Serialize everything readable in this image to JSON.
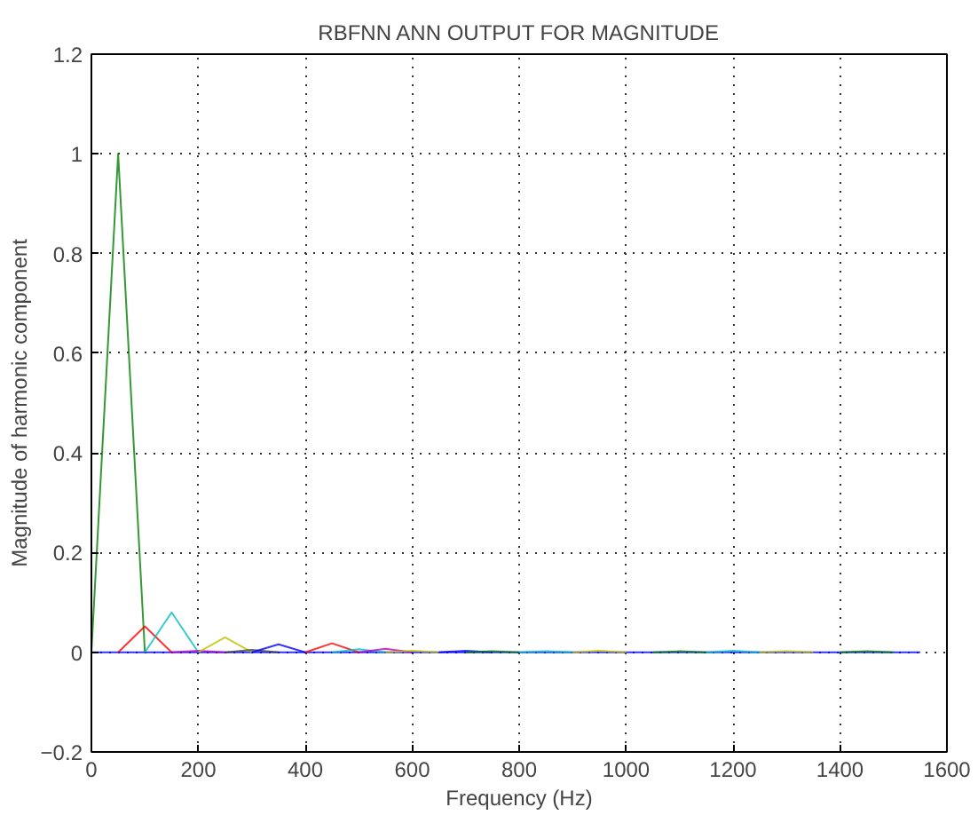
{
  "chart_data": {
    "type": "line",
    "title": "RBFNN ANN OUTPUT FOR MAGNITUDE",
    "xlabel": "Frequency (Hz)",
    "ylabel": "Magnitude of harmonic component",
    "xlim": [
      0,
      1600
    ],
    "ylim": [
      -0.2,
      1.2
    ],
    "xticks": [
      0,
      200,
      400,
      600,
      800,
      1000,
      1200,
      1400,
      1600
    ],
    "yticks": [
      -0.2,
      0,
      0.2,
      0.4,
      0.6,
      0.8,
      1,
      1.2
    ],
    "grid": true,
    "line_style": "solid",
    "series": [
      {
        "color": "#0000ff",
        "x": [
          0,
          1550
        ],
        "values": [
          0,
          0
        ]
      },
      {
        "color": "#008000",
        "x": [
          0,
          50,
          100
        ],
        "values": [
          0,
          1,
          0
        ]
      },
      {
        "color": "#ff0000",
        "x": [
          50,
          100,
          150
        ],
        "values": [
          0,
          0.052,
          0
        ]
      },
      {
        "color": "#00bfbf",
        "x": [
          100,
          150,
          200
        ],
        "values": [
          0,
          0.08,
          0
        ]
      },
      {
        "color": "#bf00bf",
        "x": [
          150,
          200,
          250
        ],
        "values": [
          0,
          0.003,
          0
        ]
      },
      {
        "color": "#bfbf00",
        "x": [
          200,
          250,
          300
        ],
        "values": [
          0,
          0.03,
          0
        ]
      },
      {
        "color": "#404040",
        "x": [
          250,
          300,
          350
        ],
        "values": [
          0,
          0.005,
          0
        ]
      },
      {
        "color": "#0000ff",
        "x": [
          300,
          350,
          400
        ],
        "values": [
          0,
          0.016,
          0
        ]
      },
      {
        "color": "#ff0000",
        "x": [
          400,
          450,
          500
        ],
        "values": [
          0,
          0.018,
          0
        ]
      },
      {
        "color": "#00bfbf",
        "x": [
          450,
          500,
          550
        ],
        "values": [
          0,
          0.006,
          0
        ]
      },
      {
        "color": "#bf00bf",
        "x": [
          500,
          550,
          600
        ],
        "values": [
          0,
          0.007,
          0
        ]
      },
      {
        "color": "#bfbf00",
        "x": [
          550,
          600,
          650
        ],
        "values": [
          0,
          0.003,
          0
        ]
      },
      {
        "color": "#0000ff",
        "x": [
          650,
          700,
          750
        ],
        "values": [
          0,
          0.003,
          0
        ]
      },
      {
        "color": "#008000",
        "x": [
          700,
          750,
          800
        ],
        "values": [
          0,
          0.002,
          0
        ]
      },
      {
        "color": "#00bfbf",
        "x": [
          800,
          850,
          900
        ],
        "values": [
          0,
          0.002,
          0
        ]
      },
      {
        "color": "#bfbf00",
        "x": [
          900,
          950,
          1000
        ],
        "values": [
          0,
          0.003,
          0
        ]
      },
      {
        "color": "#008000",
        "x": [
          1050,
          1100,
          1150
        ],
        "values": [
          0,
          0.002,
          0
        ]
      },
      {
        "color": "#00bfbf",
        "x": [
          1150,
          1200,
          1250
        ],
        "values": [
          0,
          0.003,
          0
        ]
      },
      {
        "color": "#bfbf00",
        "x": [
          1250,
          1300,
          1350
        ],
        "values": [
          0,
          0.002,
          0
        ]
      },
      {
        "color": "#008000",
        "x": [
          1400,
          1450,
          1500
        ],
        "values": [
          0,
          0.002,
          0
        ]
      }
    ]
  }
}
